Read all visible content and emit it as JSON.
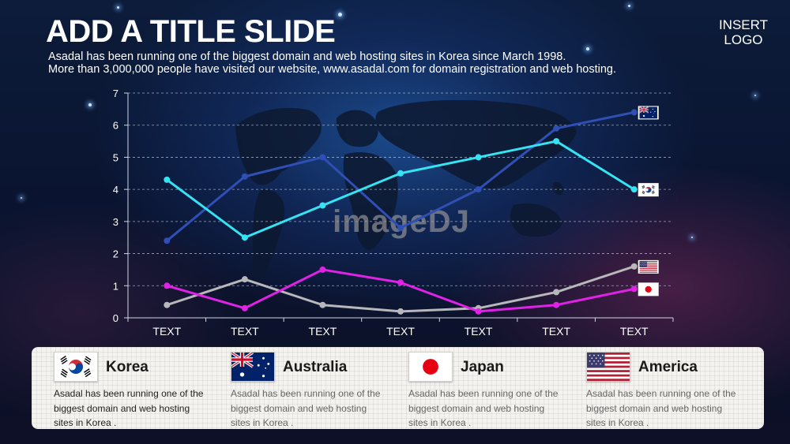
{
  "header": {
    "title": "ADD A TITLE SLIDE",
    "subtitle_line1": "Asadal has been running one of the biggest domain and web hosting sites in Korea since March 1998.",
    "subtitle_line2": "More than 3,000,000 people have visited our website,  www.asadal.com for domain registration and web hosting.",
    "logo_line1": "INSERT",
    "logo_line2": "LOGO"
  },
  "watermark": "imageDJ",
  "chart_data": {
    "type": "line",
    "categories": [
      "TEXT",
      "TEXT",
      "TEXT",
      "TEXT",
      "TEXT",
      "TEXT",
      "TEXT"
    ],
    "ylim": [
      0,
      7
    ],
    "yticks": [
      0,
      1,
      2,
      3,
      4,
      5,
      6,
      7
    ],
    "grid": true,
    "series": [
      {
        "flag": "australia",
        "color": "#2f4fb4",
        "values": [
          2.4,
          4.4,
          5.0,
          2.8,
          4.0,
          5.9,
          6.4
        ]
      },
      {
        "flag": "korea",
        "color": "#35e3f2",
        "values": [
          4.3,
          2.5,
          3.5,
          4.5,
          5.0,
          5.5,
          4.0
        ]
      },
      {
        "flag": "america",
        "color": "#b8b8bc",
        "values": [
          0.4,
          1.2,
          0.4,
          0.2,
          0.3,
          0.8,
          1.6
        ]
      },
      {
        "flag": "japan",
        "color": "#e021e6",
        "values": [
          1.0,
          0.3,
          1.5,
          1.1,
          0.2,
          0.4,
          0.9
        ]
      }
    ]
  },
  "legend_cards": [
    {
      "flag": "korea",
      "name": "Korea",
      "desc": "Asadal has been running one of the biggest domain and web hosting sites in Korea ."
    },
    {
      "flag": "australia",
      "name": "Australia",
      "desc": "Asadal has been running one of the biggest domain and web hosting sites in Korea ."
    },
    {
      "flag": "japan",
      "name": "Japan",
      "desc": "Asadal has been running one of the biggest domain and web hosting sites in Korea ."
    },
    {
      "flag": "america",
      "name": "America",
      "desc": "Asadal has been running one of the biggest domain and web hosting sites in Korea ."
    }
  ]
}
